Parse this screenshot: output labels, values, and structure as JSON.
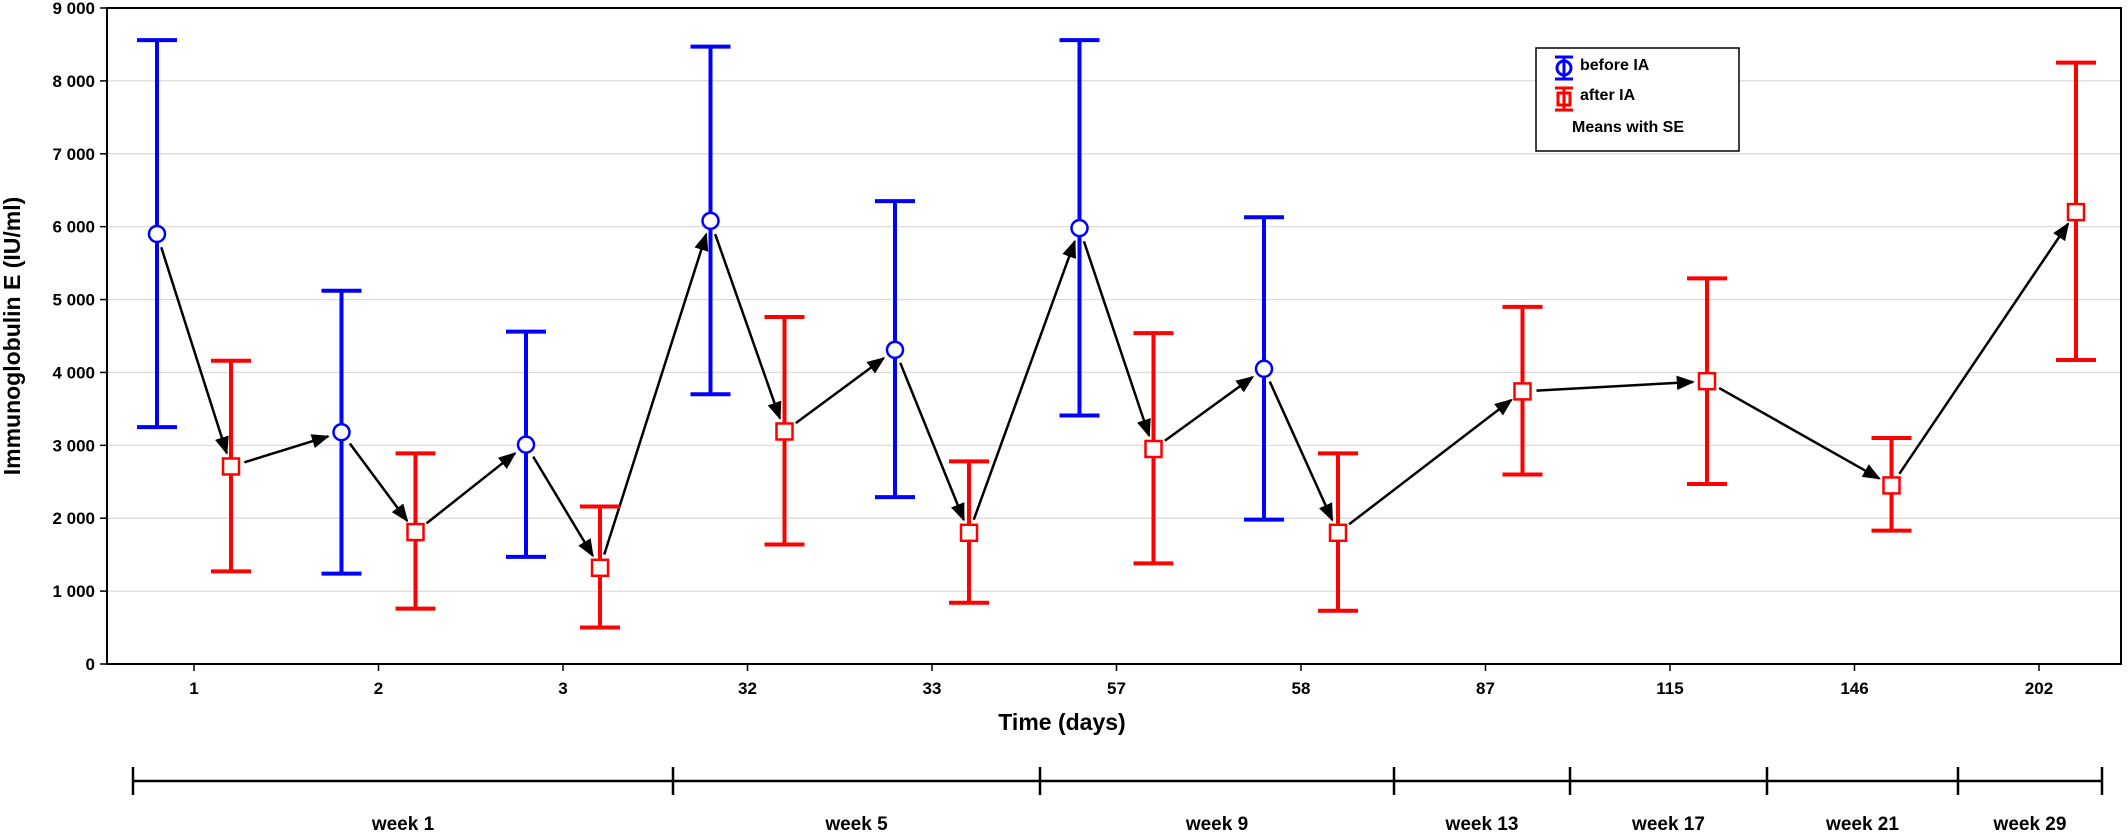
{
  "chart_data": {
    "type": "scatter",
    "xlabel": "Time (days)",
    "ylabel": "Immunoglobulin E (IU/ml)",
    "ylim": [
      0,
      9000
    ],
    "yticks": [
      0,
      1000,
      2000,
      3000,
      4000,
      5000,
      6000,
      7000,
      8000,
      9000
    ],
    "ytick_labels": [
      "0",
      "1 000",
      "2 000",
      "3 000",
      "4 000",
      "5 000",
      "6 000",
      "7 000",
      "8 000",
      "9 000"
    ],
    "categories": [
      "1",
      "2",
      "3",
      "32",
      "33",
      "57",
      "58",
      "87",
      "115",
      "146",
      "202"
    ],
    "grid": "horizontal",
    "legend_position": "top-right",
    "series": [
      {
        "name": "before IA",
        "color": "#0000ff",
        "marker": "circle",
        "points": [
          {
            "category": "1",
            "mean": 5900,
            "low": 3250,
            "high": 8560
          },
          {
            "category": "2",
            "mean": 3180,
            "low": 1240,
            "high": 5120
          },
          {
            "category": "3",
            "mean": 3010,
            "low": 1470,
            "high": 4560
          },
          {
            "category": "32",
            "mean": 6080,
            "low": 3700,
            "high": 8470
          },
          {
            "category": "33",
            "mean": 4310,
            "low": 2290,
            "high": 6350
          },
          {
            "category": "57",
            "mean": 5980,
            "low": 3410,
            "high": 8560
          },
          {
            "category": "58",
            "mean": 4050,
            "low": 1980,
            "high": 6130
          }
        ]
      },
      {
        "name": "after IA",
        "color": "#ff0000",
        "marker": "square",
        "points": [
          {
            "category": "1",
            "mean": 2710,
            "low": 1270,
            "high": 4160
          },
          {
            "category": "2",
            "mean": 1810,
            "low": 760,
            "high": 2890
          },
          {
            "category": "3",
            "mean": 1320,
            "low": 500,
            "high": 2160
          },
          {
            "category": "32",
            "mean": 3190,
            "low": 1640,
            "high": 4760
          },
          {
            "category": "33",
            "mean": 1800,
            "low": 840,
            "high": 2780
          },
          {
            "category": "57",
            "mean": 2950,
            "low": 1380,
            "high": 4540
          },
          {
            "category": "58",
            "mean": 1800,
            "low": 730,
            "high": 2890
          },
          {
            "category": "87",
            "mean": 3740,
            "low": 2600,
            "high": 4900
          },
          {
            "category": "115",
            "mean": 3880,
            "low": 2470,
            "high": 5290
          },
          {
            "category": "146",
            "mean": 2450,
            "low": 1830,
            "high": 3100
          },
          {
            "category": "202",
            "mean": 6200,
            "low": 4170,
            "high": 8250
          }
        ]
      }
    ],
    "legend_note": "Means with SE",
    "weeks": [
      "week 1",
      "week 5",
      "week 9",
      "week 13",
      "week 17",
      "week 21",
      "week 29"
    ]
  }
}
